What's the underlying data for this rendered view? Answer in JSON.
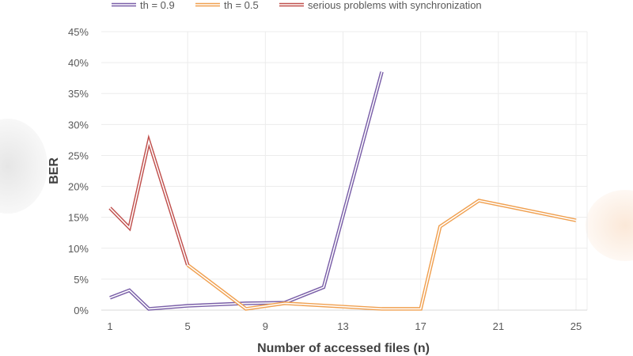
{
  "chart_data": {
    "type": "line",
    "title": "",
    "xlabel": "Number of accessed files (n)",
    "ylabel": "BER",
    "xlim": [
      1,
      25
    ],
    "ylim": [
      0,
      45
    ],
    "x_ticks": [
      "1",
      "5",
      "9",
      "13",
      "17",
      "21",
      "25"
    ],
    "x_tick_values": [
      1,
      5,
      9,
      13,
      17,
      21,
      25
    ],
    "y_ticks": [
      "0%",
      "5%",
      "10%",
      "15%",
      "20%",
      "25%",
      "30%",
      "35%",
      "40%",
      "45%"
    ],
    "y_tick_values": [
      0,
      5,
      10,
      15,
      20,
      25,
      30,
      35,
      40,
      45
    ],
    "y_unit": "%",
    "grid": true,
    "legend_position": "top",
    "line_style": "double",
    "series": [
      {
        "name": "th = 0.9",
        "color": "#7a5fa8",
        "x": [
          1,
          2,
          3,
          5,
          8,
          10,
          12,
          15
        ],
        "y": [
          2.0,
          3.2,
          0.2,
          0.7,
          1.1,
          1.2,
          3.7,
          38.5
        ]
      },
      {
        "name": "th = 0.5",
        "color": "#f0a050",
        "x": [
          5,
          8,
          10,
          15,
          17,
          18,
          20,
          25
        ],
        "y": [
          7.3,
          0.2,
          1.1,
          0.2,
          0.2,
          13.5,
          17.7,
          14.5
        ]
      },
      {
        "name": "serious problems with synchronization",
        "color": "#c0504d",
        "x": [
          1,
          2,
          3,
          5
        ],
        "y": [
          16.5,
          13.3,
          27.3,
          7.3
        ]
      }
    ]
  }
}
